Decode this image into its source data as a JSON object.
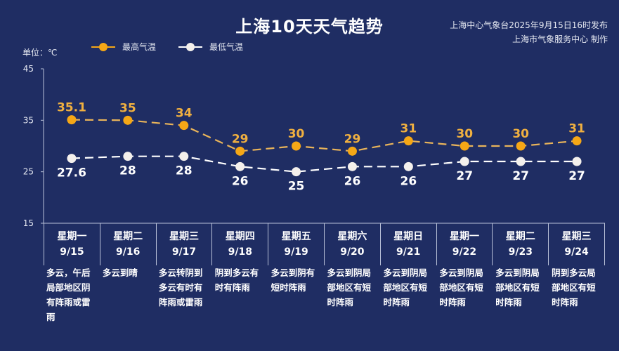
{
  "header": {
    "title": "上海10天天气趋势",
    "publisher_line1": "上海中心气象台2025年9月15日16时发布",
    "publisher_line2": "上海市气象服务中心 制作"
  },
  "unit_label": "单位：℃",
  "legend": [
    {
      "label": "最高气温",
      "color": "#f5a716"
    },
    {
      "label": "最低气温",
      "color": "#ffffff"
    }
  ],
  "colors": {
    "background": "#1f2d63",
    "high": "#f5a716",
    "high_label": "#f0b040",
    "low": "#ffffff",
    "axis": "#b9c1d8"
  },
  "days": [
    {
      "weekday": "星期一",
      "date": "9/15",
      "desc": "多云，午后局部地区阴有阵雨或雷雨"
    },
    {
      "weekday": "星期二",
      "date": "9/16",
      "desc": "多云到晴"
    },
    {
      "weekday": "星期三",
      "date": "9/17",
      "desc": "多云转阴到多云有时有阵雨或雷雨"
    },
    {
      "weekday": "星期四",
      "date": "9/18",
      "desc": "阴到多云有时有阵雨"
    },
    {
      "weekday": "星期五",
      "date": "9/19",
      "desc": "多云到阴有短时阵雨"
    },
    {
      "weekday": "星期六",
      "date": "9/20",
      "desc": "多云到阴局部地区有短时阵雨"
    },
    {
      "weekday": "星期日",
      "date": "9/21",
      "desc": "多云到阴局部地区有短时阵雨"
    },
    {
      "weekday": "星期一",
      "date": "9/22",
      "desc": "多云到阴局部地区有短时阵雨"
    },
    {
      "weekday": "星期二",
      "date": "9/23",
      "desc": "多云到阴局部地区有短时阵雨"
    },
    {
      "weekday": "星期三",
      "date": "9/24",
      "desc": "阴到多云局部地区有短时阵雨"
    }
  ],
  "chart_data": {
    "type": "line",
    "title": "上海10天天气趋势",
    "xlabel": "",
    "ylabel": "单位：℃",
    "categories": [
      "9/15",
      "9/16",
      "9/17",
      "9/18",
      "9/19",
      "9/20",
      "9/21",
      "9/22",
      "9/23",
      "9/24"
    ],
    "series": [
      {
        "name": "最高气温",
        "values": [
          35.1,
          35,
          34,
          29,
          30,
          29,
          31,
          30,
          30,
          31
        ],
        "labels": [
          "35.1",
          "35",
          "34",
          "29",
          "30",
          "29",
          "31",
          "30",
          "30",
          "31"
        ]
      },
      {
        "name": "最低气温",
        "values": [
          27.6,
          28,
          28,
          26,
          25,
          26,
          26,
          27,
          27,
          27
        ],
        "labels": [
          "27.6",
          "28",
          "28",
          "26",
          "25",
          "26",
          "26",
          "27",
          "27",
          "27"
        ]
      }
    ],
    "ylim": [
      15,
      45
    ],
    "yticks": [
      15,
      25,
      35,
      45
    ],
    "grid": false,
    "legend_position": "top-left",
    "line_style": "dashed"
  }
}
